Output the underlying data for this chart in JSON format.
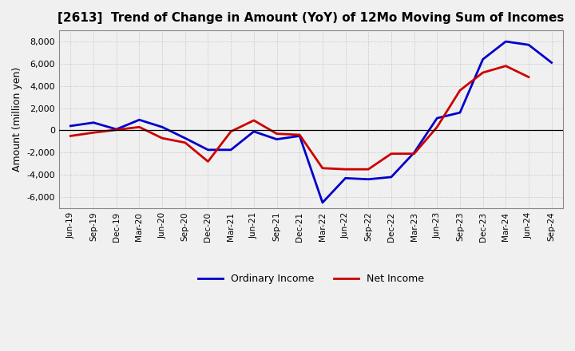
{
  "title": "[2613]  Trend of Change in Amount (YoY) of 12Mo Moving Sum of Incomes",
  "ylabel": "Amount (million yen)",
  "x_labels": [
    "Jun-19",
    "Sep-19",
    "Dec-19",
    "Mar-20",
    "Jun-20",
    "Sep-20",
    "Dec-20",
    "Mar-21",
    "Jun-21",
    "Sep-21",
    "Dec-21",
    "Mar-22",
    "Jun-22",
    "Sep-22",
    "Dec-22",
    "Mar-23",
    "Jun-23",
    "Sep-23",
    "Dec-23",
    "Mar-24",
    "Jun-24",
    "Sep-24"
  ],
  "ordinary_income": [
    400,
    700,
    100,
    950,
    300,
    -700,
    -1750,
    -1750,
    -100,
    -800,
    -500,
    -6500,
    -4300,
    -4400,
    -4200,
    -2000,
    1100,
    1600,
    6400,
    8000,
    7700,
    6100
  ],
  "net_income": [
    -500,
    -200,
    50,
    300,
    -700,
    -1100,
    -2800,
    -100,
    900,
    -300,
    -400,
    -3400,
    -3500,
    -3500,
    -2100,
    -2100,
    300,
    3600,
    5200,
    5800,
    4800,
    null
  ],
  "ordinary_color": "#0000cc",
  "net_color": "#cc0000",
  "ylim": [
    -7000,
    9000
  ],
  "yticks": [
    -6000,
    -4000,
    -2000,
    0,
    2000,
    4000,
    6000,
    8000
  ],
  "bg_color": "#f0f0f0",
  "plot_bg_color": "#f0f0f0",
  "grid_color": "#aaaaaa",
  "legend_ordinary": "Ordinary Income",
  "legend_net": "Net Income",
  "line_width": 2.0
}
